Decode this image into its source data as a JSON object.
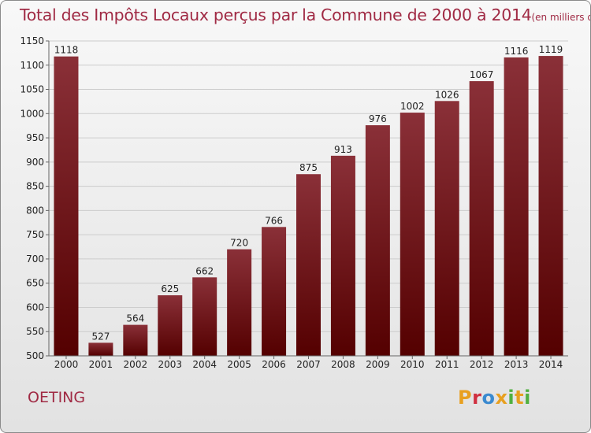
{
  "header": {
    "title": "Total des Impôts Locaux perçus par la Commune de 2000 à 2014",
    "unit": "(en milliers d'€)"
  },
  "commune": "OETING",
  "brand": {
    "letters": [
      "P",
      "r",
      "o",
      "x",
      "i",
      "t",
      "i"
    ],
    "colors": [
      "#e8a020",
      "#d03040",
      "#3a8ad0",
      "#e8a020",
      "#50b040",
      "#e8a020",
      "#50b040"
    ]
  },
  "colors": {
    "bar_top": "#8a3038",
    "bar_bottom": "#540000",
    "grid": "#cccccc",
    "axis_text": "#222222"
  },
  "chart_data": {
    "type": "bar",
    "title": "Total des Impôts Locaux perçus par la Commune de 2000 à 2014",
    "xlabel": "",
    "ylabel": "en milliers d'€",
    "categories": [
      "2000",
      "2001",
      "2002",
      "2003",
      "2004",
      "2005",
      "2006",
      "2007",
      "2008",
      "2009",
      "2010",
      "2011",
      "2012",
      "2013",
      "2014"
    ],
    "values": [
      1118,
      527,
      564,
      625,
      662,
      720,
      766,
      875,
      913,
      976,
      1002,
      1026,
      1067,
      1116,
      1119
    ],
    "ylim": [
      500,
      1150
    ],
    "yticks": [
      500,
      550,
      600,
      650,
      700,
      750,
      800,
      850,
      900,
      950,
      1000,
      1050,
      1100,
      1150
    ],
    "grid": true
  }
}
